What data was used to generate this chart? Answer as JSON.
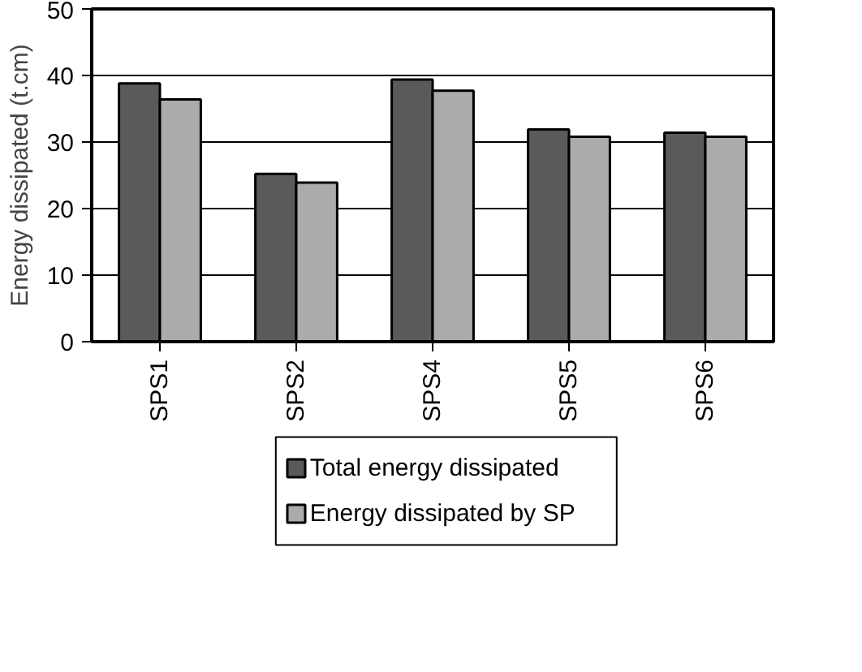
{
  "chart_data": {
    "type": "bar",
    "ylabel": "Energy dissipated (t.cm)",
    "categories": [
      "SPS1",
      "SPS2",
      "SPS4",
      "SPS5",
      "SPS6"
    ],
    "series": [
      {
        "name": "Total energy dissipated",
        "color": "#5a5a5a",
        "values": [
          38.8,
          25.2,
          39.4,
          31.9,
          31.4
        ]
      },
      {
        "name": "Energy dissipated by SP",
        "color": "#ababab",
        "values": [
          36.4,
          23.9,
          37.7,
          30.8,
          30.8
        ]
      }
    ],
    "ylim": [
      0,
      50
    ],
    "yticks": [
      0,
      10,
      20,
      30,
      40,
      50
    ],
    "grid": "y",
    "legend": "bottom"
  }
}
